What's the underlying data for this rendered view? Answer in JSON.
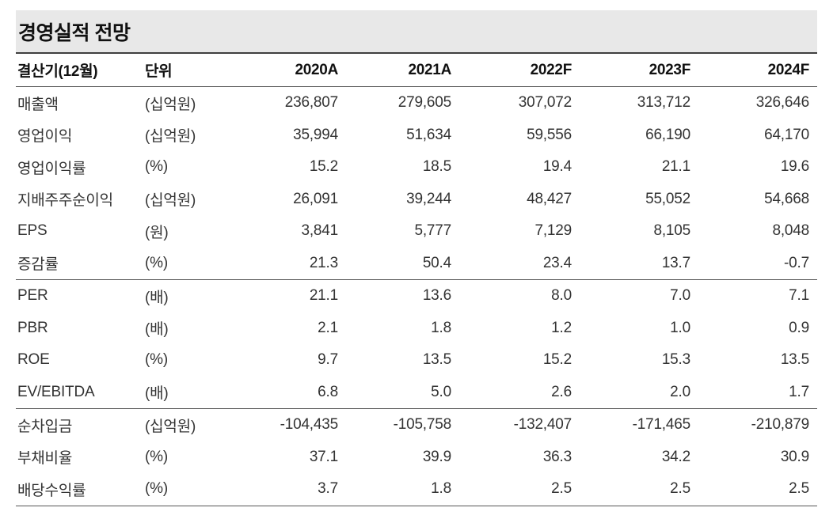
{
  "title": "경영실적 전망",
  "table": {
    "header": {
      "period": "결산기(12월)",
      "unit": "단위",
      "years": [
        "2020A",
        "2021A",
        "2022F",
        "2023F",
        "2024F"
      ]
    },
    "sections": [
      {
        "name": "earnings",
        "rows": [
          {
            "label": "매출액",
            "unit": "(십억원)",
            "values": [
              "236,807",
              "279,605",
              "307,072",
              "313,712",
              "326,646"
            ]
          },
          {
            "label": "영업이익",
            "unit": "(십억원)",
            "values": [
              "35,994",
              "51,634",
              "59,556",
              "66,190",
              "64,170"
            ]
          },
          {
            "label": "영업이익률",
            "unit": "(%)",
            "values": [
              "15.2",
              "18.5",
              "19.4",
              "21.1",
              "19.6"
            ]
          },
          {
            "label": "지배주주순이익",
            "unit": "(십억원)",
            "values": [
              "26,091",
              "39,244",
              "48,427",
              "55,052",
              "54,668"
            ]
          },
          {
            "label": "EPS",
            "unit": "(원)",
            "values": [
              "3,841",
              "5,777",
              "7,129",
              "8,105",
              "8,048"
            ]
          },
          {
            "label": "증감률",
            "unit": "(%)",
            "values": [
              "21.3",
              "50.4",
              "23.4",
              "13.7",
              "-0.7"
            ]
          }
        ]
      },
      {
        "name": "valuation",
        "rows": [
          {
            "label": "PER",
            "unit": "(배)",
            "values": [
              "21.1",
              "13.6",
              "8.0",
              "7.0",
              "7.1"
            ]
          },
          {
            "label": "PBR",
            "unit": "(배)",
            "values": [
              "2.1",
              "1.8",
              "1.2",
              "1.0",
              "0.9"
            ]
          },
          {
            "label": "ROE",
            "unit": "(%)",
            "values": [
              "9.7",
              "13.5",
              "15.2",
              "15.3",
              "13.5"
            ]
          },
          {
            "label": "EV/EBITDA",
            "unit": "(배)",
            "values": [
              "6.8",
              "5.0",
              "2.6",
              "2.0",
              "1.7"
            ]
          }
        ]
      },
      {
        "name": "financial-position",
        "rows": [
          {
            "label": "순차입금",
            "unit": "(십억원)",
            "values": [
              "-104,435",
              "-105,758",
              "-132,407",
              "-171,465",
              "-210,879"
            ]
          },
          {
            "label": "부채비율",
            "unit": "(%)",
            "values": [
              "37.1",
              "39.9",
              "36.3",
              "34.2",
              "30.9"
            ]
          },
          {
            "label": "배당수익률",
            "unit": "(%)",
            "values": [
              "3.7",
              "1.8",
              "2.5",
              "2.5",
              "2.5"
            ]
          }
        ]
      }
    ]
  },
  "colors": {
    "title_bar_bg": "#e8e8e8",
    "rule_dark": "#3f3f3f",
    "rule_medium": "#555555",
    "text_primary": "#111111",
    "text_body": "#333333"
  }
}
